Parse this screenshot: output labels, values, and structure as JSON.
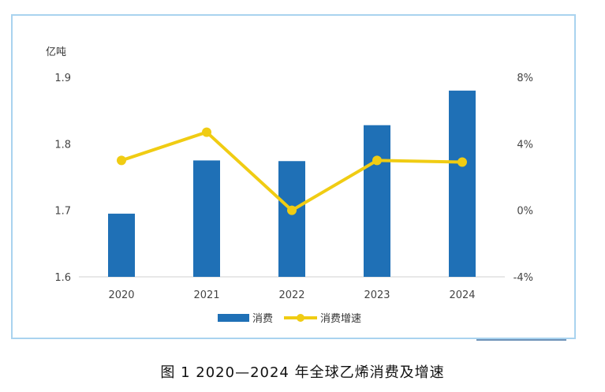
{
  "caption": "图 1  2020—2024 年全球乙烯消费及增速",
  "chart_data": {
    "type": "bar+line",
    "categories": [
      "2020",
      "2021",
      "2022",
      "2023",
      "2024"
    ],
    "series": [
      {
        "name": "消费",
        "type": "bar",
        "axis": "left",
        "color": "#1f70b6",
        "values": [
          1.695,
          1.775,
          1.774,
          1.828,
          1.88
        ]
      },
      {
        "name": "消费增速",
        "type": "line",
        "axis": "right",
        "color": "#f0cc13",
        "values": [
          3.0,
          4.7,
          0.0,
          3.0,
          2.9
        ]
      }
    ],
    "y_left": {
      "unit": "亿吨",
      "range": [
        1.6,
        1.9
      ],
      "ticks": [
        "1.6",
        "1.7",
        "1.8",
        "1.9"
      ]
    },
    "y_right": {
      "range": [
        -4,
        8
      ],
      "ticks": [
        "-4%",
        "0%",
        "4%",
        "8%"
      ]
    },
    "grid": false,
    "legend": "bottom-center"
  }
}
